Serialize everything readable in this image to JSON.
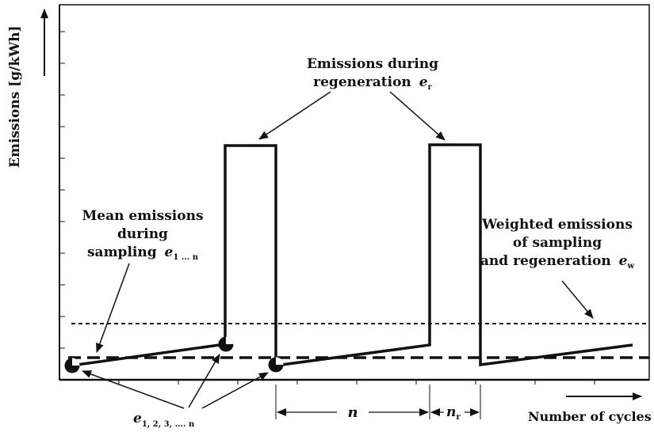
{
  "y_axis": {
    "label": "Emissions [g/kWh]"
  },
  "x_axis": {
    "label": "Number of cycles"
  },
  "annotations": {
    "regen_line1": "Emissions during",
    "regen_line2": "regeneration",
    "regen_var": "e",
    "regen_sub": "r",
    "mean_line1": "Mean emissions",
    "mean_line2": "during",
    "mean_line3": "sampling",
    "mean_var": "e",
    "mean_sub": "1 ... n",
    "weighted_line1": "Weighted emissions",
    "weighted_line2": "of sampling",
    "weighted_line3": "and regeneration",
    "weighted_var": "e",
    "weighted_sub": "w",
    "points_var": "e",
    "points_sub": "1, 2, 3, .... n",
    "interval_n": "n",
    "interval_nr_var": "n",
    "interval_nr_sub": "r"
  },
  "colors": {
    "ink": "#111111",
    "background": "#ffffff"
  }
}
